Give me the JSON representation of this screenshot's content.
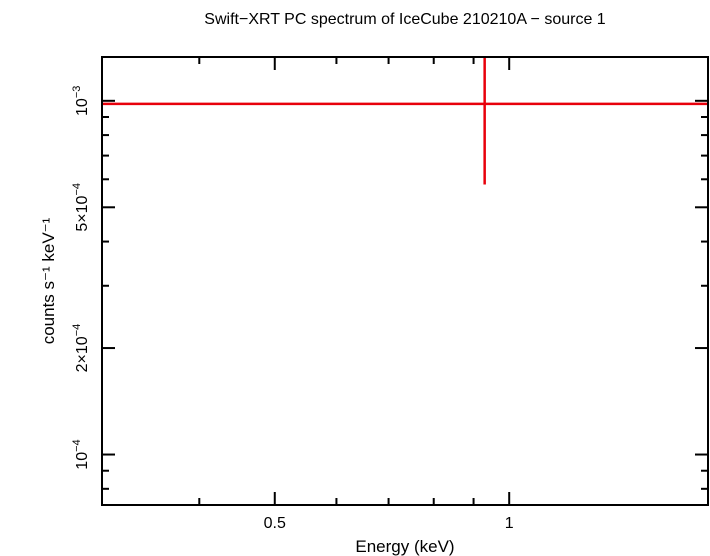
{
  "chart_data": {
    "type": "scatter",
    "title": "Swift−XRT PC spectrum of IceCube 210210A − source 1",
    "xlabel": "Energy (keV)",
    "ylabel": "counts s⁻¹ keV⁻¹",
    "xscale": "log",
    "yscale": "log",
    "xlim": [
      0.3,
      1.8
    ],
    "ylim": [
      7.2e-05,
      0.00133
    ],
    "x_ticks": [
      {
        "value": 0.5,
        "label": "0.5"
      },
      {
        "value": 1,
        "label": "1"
      }
    ],
    "y_ticks": [
      {
        "value": 0.0001,
        "label_base": "10",
        "label_exp": "−4"
      },
      {
        "value": 0.0002,
        "label_base": "2×10",
        "label_exp": "−4"
      },
      {
        "value": 0.0005,
        "label_base": "5×10",
        "label_exp": "−4"
      },
      {
        "value": 0.001,
        "label_base": "10",
        "label_exp": "−3"
      }
    ],
    "grid": false,
    "series": [
      {
        "color": "#e8000b",
        "points": [
          {
            "x": 0.93,
            "y": 0.00098,
            "y_low": 0.00058,
            "y_high": 0.00133,
            "x_low": 0.3,
            "x_high": 1.8
          }
        ]
      }
    ]
  }
}
